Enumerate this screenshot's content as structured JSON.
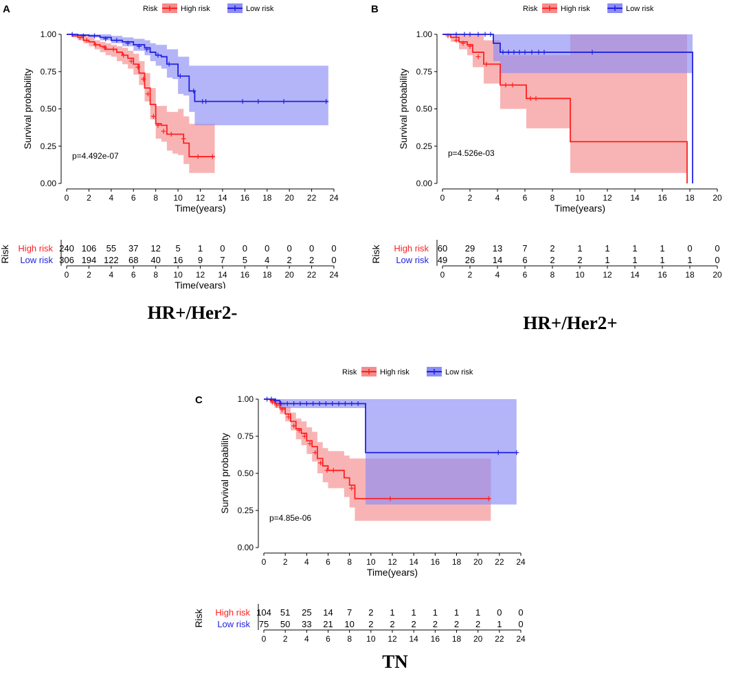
{
  "colors": {
    "high": "#ff1f1f",
    "low": "#2020e0",
    "high_fill": "#f58c8c",
    "low_fill": "#8c8cf5"
  },
  "chart_data": [
    {
      "id": "A",
      "type": "line",
      "panel_label": "A",
      "title": "HR+/Her2-",
      "xlabel": "Time(years)",
      "ylabel": "Survival probability",
      "xlim": [
        0,
        24
      ],
      "ylim": [
        0,
        1
      ],
      "xticks": [
        0,
        2,
        4,
        6,
        8,
        10,
        12,
        14,
        16,
        18,
        20,
        22,
        24
      ],
      "xtick_labels": [
        "0",
        "2",
        "4",
        "6",
        "8",
        "10",
        "12",
        "14",
        "16",
        "18",
        "20",
        "22",
        "24"
      ],
      "yticks": [
        0,
        0.25,
        0.5,
        0.75,
        1.0
      ],
      "ytick_labels": [
        "0.00",
        "0.25",
        "0.50",
        "0.75",
        "1.00"
      ],
      "pvalue": "p=4.492e-07",
      "legend": {
        "title": "Risk",
        "entries": [
          "High risk",
          "Low risk"
        ],
        "placement": "top"
      },
      "series": [
        {
          "name": "High risk",
          "x": [
            0,
            0.5,
            1,
            1.5,
            2,
            2.5,
            3,
            3.5,
            4,
            4.5,
            5,
            5.5,
            6,
            6.5,
            7,
            7.5,
            8,
            8.5,
            9,
            9.5,
            10,
            10.5,
            11,
            12,
            13.3
          ],
          "y": [
            1.0,
            0.99,
            0.98,
            0.96,
            0.95,
            0.93,
            0.92,
            0.9,
            0.9,
            0.88,
            0.86,
            0.84,
            0.8,
            0.74,
            0.64,
            0.53,
            0.4,
            0.39,
            0.33,
            0.33,
            0.33,
            0.27,
            0.18,
            0.18,
            0.18
          ],
          "lower": [
            1.0,
            0.98,
            0.96,
            0.94,
            0.92,
            0.9,
            0.88,
            0.86,
            0.85,
            0.82,
            0.8,
            0.77,
            0.73,
            0.66,
            0.55,
            0.43,
            0.3,
            0.28,
            0.22,
            0.2,
            0.19,
            0.13,
            0.07,
            0.07,
            0.07
          ],
          "upper": [
            1.0,
            1.0,
            1.0,
            0.99,
            0.98,
            0.96,
            0.95,
            0.94,
            0.93,
            0.92,
            0.91,
            0.89,
            0.87,
            0.82,
            0.74,
            0.64,
            0.52,
            0.52,
            0.48,
            0.48,
            0.5,
            0.45,
            0.4,
            0.4,
            0.4
          ],
          "censor_x": [
            1.2,
            1.8,
            2.6,
            3.4,
            4.2,
            5.1,
            5.8,
            6.4,
            6.9,
            7.3,
            7.8,
            8.2,
            8.7,
            9.4,
            10.5,
            11.8,
            13.1
          ],
          "censor_y": [
            0.98,
            0.96,
            0.93,
            0.91,
            0.9,
            0.86,
            0.82,
            0.78,
            0.7,
            0.6,
            0.45,
            0.39,
            0.35,
            0.33,
            0.3,
            0.18,
            0.18
          ]
        },
        {
          "name": "Low risk",
          "x": [
            0,
            1,
            2,
            3,
            4,
            5,
            6,
            7,
            7.5,
            8,
            8.5,
            9,
            9.5,
            10,
            10.5,
            11,
            11.5,
            12,
            14,
            16,
            18,
            20,
            22,
            23.5
          ],
          "y": [
            1.0,
            0.995,
            0.99,
            0.98,
            0.96,
            0.95,
            0.93,
            0.91,
            0.88,
            0.86,
            0.85,
            0.8,
            0.8,
            0.72,
            0.72,
            0.62,
            0.55,
            0.55,
            0.55,
            0.55,
            0.55,
            0.55,
            0.55,
            0.55
          ],
          "lower": [
            1.0,
            0.99,
            0.98,
            0.96,
            0.94,
            0.92,
            0.89,
            0.86,
            0.82,
            0.79,
            0.77,
            0.71,
            0.7,
            0.6,
            0.59,
            0.48,
            0.39,
            0.39,
            0.39,
            0.39,
            0.39,
            0.39,
            0.39,
            0.39
          ],
          "upper": [
            1.0,
            1.0,
            1.0,
            1.0,
            0.99,
            0.98,
            0.97,
            0.96,
            0.94,
            0.93,
            0.93,
            0.9,
            0.9,
            0.85,
            0.85,
            0.79,
            0.79,
            0.79,
            0.79,
            0.79,
            0.79,
            0.79,
            0.79,
            0.79
          ],
          "censor_x": [
            0.5,
            1.5,
            2.5,
            3.5,
            4.5,
            5.5,
            6.5,
            7.2,
            8.2,
            9.2,
            10.2,
            11.4,
            12.2,
            12.5,
            15.8,
            17.2,
            19.5,
            23.3
          ],
          "censor_y": [
            1.0,
            0.99,
            0.99,
            0.97,
            0.96,
            0.94,
            0.92,
            0.9,
            0.86,
            0.8,
            0.72,
            0.62,
            0.55,
            0.55,
            0.55,
            0.55,
            0.55,
            0.55
          ]
        }
      ],
      "risk_table": {
        "title": "Risk",
        "rows": [
          {
            "label": "High risk",
            "values": [
              "240",
              "106",
              "55",
              "37",
              "12",
              "5",
              "1",
              "0",
              "0",
              "0",
              "0",
              "0",
              "0"
            ]
          },
          {
            "label": "Low risk",
            "values": [
              "306",
              "194",
              "122",
              "68",
              "40",
              "16",
              "9",
              "7",
              "5",
              "4",
              "2",
              "2",
              "0"
            ]
          }
        ],
        "xlabel": "Time(years)"
      }
    },
    {
      "id": "B",
      "type": "line",
      "panel_label": "B",
      "title": "HR+/Her2+",
      "xlabel": "Time(years)",
      "ylabel": "Survival probability",
      "xlim": [
        0,
        20
      ],
      "ylim": [
        0,
        1
      ],
      "xticks": [
        0,
        2,
        4,
        6,
        8,
        10,
        12,
        14,
        16,
        18,
        20
      ],
      "xtick_labels": [
        "0",
        "2",
        "4",
        "6",
        "8",
        "10",
        "12",
        "14",
        "16",
        "18",
        "20"
      ],
      "yticks": [
        0,
        0.25,
        0.5,
        0.75,
        1.0
      ],
      "ytick_labels": [
        "0.00",
        "0.25",
        "0.50",
        "0.75",
        "1.00"
      ],
      "pvalue": "p=4.526e-03",
      "legend": {
        "title": "Risk",
        "entries": [
          "High risk",
          "Low risk"
        ],
        "placement": "top"
      },
      "series": [
        {
          "name": "High risk",
          "x": [
            0,
            0.6,
            1.2,
            1.8,
            2.2,
            3.0,
            3.8,
            4.2,
            5,
            6.1,
            7,
            8,
            9.3,
            10,
            17.7,
            17.8
          ],
          "y": [
            1.0,
            0.98,
            0.95,
            0.93,
            0.88,
            0.8,
            0.8,
            0.66,
            0.66,
            0.57,
            0.57,
            0.57,
            0.28,
            0.28,
            0.28,
            0.0
          ],
          "lower": [
            1.0,
            0.95,
            0.9,
            0.86,
            0.78,
            0.67,
            0.67,
            0.5,
            0.5,
            0.37,
            0.37,
            0.37,
            0.07,
            0.07,
            0.07,
            0.07
          ],
          "upper": [
            1.0,
            1.0,
            1.0,
            1.0,
            1.0,
            0.96,
            0.96,
            0.86,
            0.86,
            0.86,
            0.86,
            0.86,
            1.0,
            1.0,
            1.0,
            1.0
          ],
          "censor_x": [
            0.4,
            1.0,
            1.5,
            2.0,
            2.6,
            3.2,
            4.6,
            5.1,
            6.4,
            6.8
          ],
          "censor_y": [
            0.99,
            0.96,
            0.94,
            0.92,
            0.85,
            0.8,
            0.66,
            0.66,
            0.57,
            0.57
          ],
          "drop_to_zero": true
        },
        {
          "name": "Low risk",
          "x": [
            0,
            3.7,
            4.2,
            5,
            6,
            7,
            8,
            9,
            10,
            11,
            12,
            14,
            16,
            18,
            18.2
          ],
          "y": [
            1.0,
            0.94,
            0.88,
            0.88,
            0.88,
            0.88,
            0.88,
            0.88,
            0.88,
            0.88,
            0.88,
            0.88,
            0.88,
            0.88,
            0.0
          ],
          "lower": [
            1.0,
            0.82,
            0.74,
            0.74,
            0.74,
            0.74,
            0.74,
            0.74,
            0.74,
            0.74,
            0.74,
            0.74,
            0.74,
            0.74,
            0.74
          ],
          "upper": [
            1.0,
            1.0,
            1.0,
            1.0,
            1.0,
            1.0,
            1.0,
            1.0,
            1.0,
            1.0,
            1.0,
            1.0,
            1.0,
            1.0,
            1.0
          ],
          "censor_x": [
            1.0,
            1.6,
            2.0,
            2.6,
            3.1,
            3.5,
            4.4,
            4.8,
            5.2,
            5.6,
            6.0,
            6.5,
            7.0,
            7.4,
            10.9
          ],
          "censor_y": [
            1.0,
            1.0,
            1.0,
            1.0,
            1.0,
            1.0,
            0.88,
            0.88,
            0.88,
            0.88,
            0.88,
            0.88,
            0.88,
            0.88,
            0.88
          ],
          "drop_to_zero": true
        }
      ],
      "risk_table": {
        "title": "Risk",
        "rows": [
          {
            "label": "High risk",
            "values": [
              "60",
              "29",
              "13",
              "7",
              "2",
              "1",
              "1",
              "1",
              "1",
              "0",
              "0"
            ]
          },
          {
            "label": "Low risk",
            "values": [
              "49",
              "26",
              "14",
              "6",
              "2",
              "2",
              "1",
              "1",
              "1",
              "1",
              "0"
            ]
          }
        ],
        "xlabel": ""
      }
    },
    {
      "id": "C",
      "type": "line",
      "panel_label": "C",
      "title": "TN",
      "xlabel": "Time(years)",
      "ylabel": "Survival probability",
      "xlim": [
        0,
        24
      ],
      "ylim": [
        0,
        1
      ],
      "xticks": [
        0,
        2,
        4,
        6,
        8,
        10,
        12,
        14,
        16,
        18,
        20,
        22,
        24
      ],
      "xtick_labels": [
        "0",
        "2",
        "4",
        "6",
        "8",
        "10",
        "12",
        "14",
        "16",
        "18",
        "20",
        "22",
        "24"
      ],
      "yticks": [
        0,
        0.25,
        0.5,
        0.75,
        1.0
      ],
      "ytick_labels": [
        "0.00",
        "0.25",
        "0.50",
        "0.75",
        "1.00"
      ],
      "pvalue": "p=4.85e-06",
      "legend": {
        "title": "Risk",
        "entries": [
          "High risk",
          "Low risk"
        ],
        "placement": "top"
      },
      "series": [
        {
          "name": "High risk",
          "x": [
            0,
            0.6,
            1,
            1.5,
            2,
            2.5,
            3,
            3.5,
            4,
            4.5,
            5,
            5.5,
            6,
            6.5,
            7,
            7.5,
            8,
            8.5,
            9,
            10,
            12,
            14,
            16,
            18,
            20,
            21.2
          ],
          "y": [
            1.0,
            0.99,
            0.97,
            0.94,
            0.9,
            0.85,
            0.8,
            0.77,
            0.72,
            0.68,
            0.6,
            0.55,
            0.52,
            0.52,
            0.52,
            0.47,
            0.42,
            0.33,
            0.33,
            0.33,
            0.33,
            0.33,
            0.33,
            0.33,
            0.33,
            0.33
          ],
          "lower": [
            1.0,
            0.97,
            0.94,
            0.9,
            0.85,
            0.79,
            0.73,
            0.69,
            0.63,
            0.58,
            0.5,
            0.44,
            0.4,
            0.4,
            0.4,
            0.34,
            0.27,
            0.18,
            0.18,
            0.18,
            0.18,
            0.18,
            0.18,
            0.18,
            0.18,
            0.18
          ],
          "upper": [
            1.0,
            1.0,
            1.0,
            0.98,
            0.95,
            0.91,
            0.87,
            0.85,
            0.81,
            0.78,
            0.71,
            0.67,
            0.65,
            0.65,
            0.65,
            0.62,
            0.6,
            0.6,
            0.6,
            0.6,
            0.6,
            0.6,
            0.6,
            0.6,
            0.6,
            0.6
          ],
          "censor_x": [
            0.8,
            1.2,
            1.7,
            2.3,
            2.8,
            3.3,
            3.8,
            4.3,
            4.8,
            5.3,
            5.9,
            6.5,
            8.2,
            11.8,
            21.0
          ],
          "censor_y": [
            0.98,
            0.96,
            0.93,
            0.88,
            0.82,
            0.79,
            0.75,
            0.7,
            0.64,
            0.57,
            0.52,
            0.52,
            0.4,
            0.33,
            0.33
          ],
          "drop_to_zero": false
        },
        {
          "name": "Low risk",
          "x": [
            0,
            1,
            1.5,
            2,
            4,
            6,
            8,
            9.4,
            9.5,
            12,
            14,
            16,
            18,
            20,
            22,
            23.6
          ],
          "y": [
            1.0,
            0.99,
            0.97,
            0.97,
            0.97,
            0.97,
            0.97,
            0.97,
            0.64,
            0.64,
            0.64,
            0.64,
            0.64,
            0.64,
            0.64,
            0.64
          ],
          "lower": [
            1.0,
            0.97,
            0.94,
            0.94,
            0.94,
            0.94,
            0.94,
            0.94,
            0.29,
            0.29,
            0.29,
            0.29,
            0.29,
            0.29,
            0.29,
            0.29
          ],
          "upper": [
            1.0,
            1.0,
            1.0,
            1.0,
            1.0,
            1.0,
            1.0,
            1.0,
            1.0,
            1.0,
            1.0,
            1.0,
            1.0,
            1.0,
            1.0,
            1.0
          ],
          "censor_x": [
            0.3,
            0.7,
            1.1,
            1.6,
            2.2,
            2.8,
            3.4,
            4.0,
            4.6,
            5.2,
            5.8,
            6.4,
            7.0,
            7.6,
            8.2,
            8.8,
            21.9,
            23.6
          ],
          "censor_y": [
            1.0,
            1.0,
            0.99,
            0.97,
            0.97,
            0.97,
            0.97,
            0.97,
            0.97,
            0.97,
            0.97,
            0.97,
            0.97,
            0.97,
            0.97,
            0.97,
            0.64,
            0.64
          ],
          "drop_to_zero": false
        }
      ],
      "risk_table": {
        "title": "Risk",
        "rows": [
          {
            "label": "High risk",
            "values": [
              "104",
              "51",
              "25",
              "14",
              "7",
              "2",
              "1",
              "1",
              "1",
              "1",
              "1",
              "0",
              "0"
            ]
          },
          {
            "label": "Low risk",
            "values": [
              "75",
              "50",
              "33",
              "21",
              "10",
              "2",
              "2",
              "2",
              "2",
              "2",
              "2",
              "1",
              "0"
            ]
          }
        ],
        "xlabel": "Time(years)"
      }
    }
  ]
}
